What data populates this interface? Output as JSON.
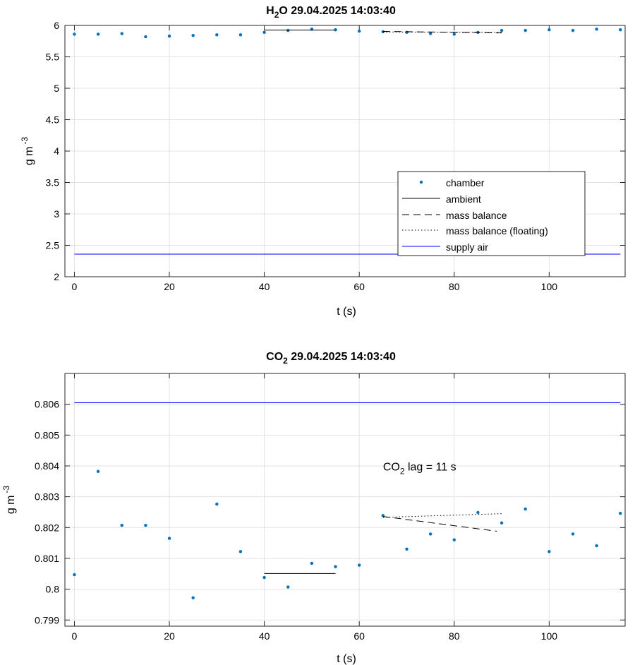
{
  "chart_data": [
    {
      "type": "scatter",
      "title": "H",
      "title_sub": "2",
      "title_rest": "O  29.04.2025 14:03:40",
      "xlabel": "t (s)",
      "ylabel": "g m",
      "ylabel_sup": "-3",
      "xlim": [
        -2,
        116
      ],
      "ylim": [
        2,
        6
      ],
      "xticks": [
        0,
        20,
        40,
        60,
        80,
        100
      ],
      "xtick_labels": [
        "0",
        "20",
        "40",
        "60",
        "80",
        "100"
      ],
      "yticks": [
        2,
        2.5,
        3,
        3.5,
        4,
        4.5,
        5,
        5.5,
        6
      ],
      "ytick_labels": [
        "2",
        "2.5",
        "3",
        "3.5",
        "4",
        "4.5",
        "5",
        "5.5",
        "6"
      ],
      "grid": true,
      "legend_position": "lower-right",
      "series": [
        {
          "name": "chamber",
          "style": "dots",
          "color": "#0072BD",
          "x": [
            0,
            5,
            10,
            15,
            20,
            25,
            30,
            35,
            40,
            45,
            50,
            55,
            60,
            65,
            70,
            75,
            80,
            85,
            90,
            95,
            100,
            105,
            110,
            115
          ],
          "y": [
            5.86,
            5.86,
            5.87,
            5.82,
            5.83,
            5.84,
            5.85,
            5.85,
            5.89,
            5.92,
            5.94,
            5.93,
            5.91,
            5.9,
            5.89,
            5.87,
            5.86,
            5.89,
            5.92,
            5.92,
            5.93,
            5.92,
            5.94,
            5.93
          ]
        },
        {
          "name": "ambient",
          "style": "solid",
          "color": "#000000",
          "x": [
            40,
            55
          ],
          "y": [
            5.925,
            5.925
          ]
        },
        {
          "name": "mass balance",
          "style": "dashed",
          "color": "#000000",
          "x": [
            65,
            90
          ],
          "y": [
            5.905,
            5.88
          ]
        },
        {
          "name": "mass balance (floating)",
          "style": "dotted",
          "color": "#000000",
          "x": [
            65,
            90
          ],
          "y": [
            5.895,
            5.89
          ]
        },
        {
          "name": "supply air",
          "style": "solid",
          "color": "#0000FF",
          "x": [
            0,
            115
          ],
          "y": [
            2.36,
            2.36
          ]
        }
      ]
    },
    {
      "type": "scatter",
      "title": "CO",
      "title_sub": "2",
      "title_rest": "  29.04.2025 14:03:40",
      "xlabel": "t (s)",
      "ylabel": "g m",
      "ylabel_sup": "-3",
      "xlim": [
        -2,
        116
      ],
      "ylim": [
        0.7988,
        0.807
      ],
      "xticks": [
        0,
        20,
        40,
        60,
        80,
        100
      ],
      "xtick_labels": [
        "0",
        "20",
        "40",
        "60",
        "80",
        "100"
      ],
      "yticks": [
        0.799,
        0.8,
        0.801,
        0.802,
        0.803,
        0.804,
        0.805,
        0.806
      ],
      "ytick_labels": [
        "0.799",
        "0.8",
        "0.801",
        "0.802",
        "0.803",
        "0.804",
        "0.805",
        "0.806"
      ],
      "grid": true,
      "annotation": {
        "text_a": "CO",
        "text_sub": "2",
        "text_b": " lag = 11 s",
        "x": 65,
        "y": 0.80385
      },
      "series": [
        {
          "name": "chamber",
          "style": "dots",
          "color": "#0072BD",
          "x": [
            0,
            5,
            10,
            15,
            20,
            25,
            30,
            35,
            40,
            45,
            50,
            55,
            60,
            65,
            70,
            75,
            80,
            85,
            90,
            95,
            100,
            105,
            110,
            115
          ],
          "y": [
            0.80047,
            0.80382,
            0.80207,
            0.80207,
            0.80165,
            0.79972,
            0.80276,
            0.80122,
            0.80038,
            0.80007,
            0.80084,
            0.80073,
            0.80078,
            0.80239,
            0.8013,
            0.80179,
            0.8016,
            0.80249,
            0.80215,
            0.8026,
            0.80122,
            0.80179,
            0.80141,
            0.80246
          ]
        },
        {
          "name": "ambient",
          "style": "solid",
          "color": "#000000",
          "x": [
            40,
            55
          ],
          "y": [
            0.80051,
            0.80051
          ]
        },
        {
          "name": "mass balance",
          "style": "dashed",
          "color": "#000000",
          "x": [
            65,
            89
          ],
          "y": [
            0.80236,
            0.80188
          ]
        },
        {
          "name": "mass balance (floating)",
          "style": "dotted",
          "color": "#000000",
          "x": [
            65,
            90
          ],
          "y": [
            0.80233,
            0.80245
          ]
        },
        {
          "name": "supply air",
          "style": "solid",
          "color": "#0000FF",
          "x": [
            0,
            115
          ],
          "y": [
            0.80605,
            0.80605
          ]
        }
      ]
    }
  ]
}
